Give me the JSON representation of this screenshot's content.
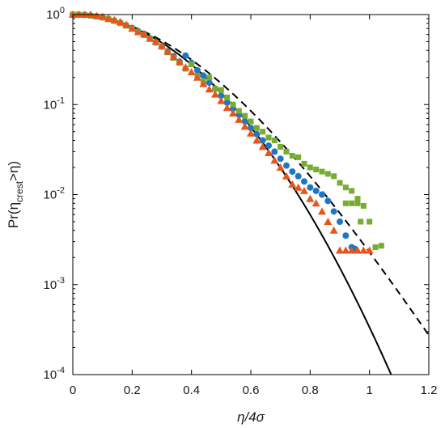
{
  "chart_data": {
    "type": "scatter",
    "xlabel": "η/4σ",
    "ylabel": {
      "prefix": "Pr(η",
      "sub": "crest",
      "suffix": ">η)"
    },
    "xlim": [
      0,
      1.2
    ],
    "ylim": [
      0.0001,
      1
    ],
    "yscale": "log",
    "grid": false,
    "legend": "none",
    "x_ticks": [
      {
        "value": 0,
        "label": "0"
      },
      {
        "value": 0.2,
        "label": "0.2"
      },
      {
        "value": 0.4,
        "label": "0.4"
      },
      {
        "value": 0.6,
        "label": "0.6"
      },
      {
        "value": 0.8,
        "label": "0.8"
      },
      {
        "value": 1,
        "label": "1"
      },
      {
        "value": 1.2,
        "label": "1.2"
      }
    ],
    "y_ticks": [
      {
        "value": 1,
        "base": "10",
        "exp": "0"
      },
      {
        "value": 0.1,
        "base": "10",
        "exp": "-1"
      },
      {
        "value": 0.01,
        "base": "10",
        "exp": "-2"
      },
      {
        "value": 0.001,
        "base": "10",
        "exp": "-3"
      },
      {
        "value": 0.0001,
        "base": "10",
        "exp": "-4"
      }
    ],
    "curves": [
      {
        "style": "solid",
        "color": "#000000",
        "formula": "exp(-8*x^2)"
      },
      {
        "style": "dashed",
        "color": "#000000",
        "formula": "exp(-8*x^2*(1-0.24*x))"
      }
    ],
    "series": [
      {
        "marker": "circle",
        "color": "#1f77c4",
        "points": [
          [
            0,
            1
          ],
          [
            0.02,
            1
          ],
          [
            0.04,
            0.99
          ],
          [
            0.06,
            0.975
          ],
          [
            0.08,
            0.955
          ],
          [
            0.1,
            0.93
          ],
          [
            0.12,
            0.895
          ],
          [
            0.14,
            0.855
          ],
          [
            0.16,
            0.81
          ],
          [
            0.18,
            0.76
          ],
          [
            0.2,
            0.71
          ],
          [
            0.22,
            0.655
          ],
          [
            0.24,
            0.6
          ],
          [
            0.26,
            0.545
          ],
          [
            0.28,
            0.49
          ],
          [
            0.3,
            0.44
          ],
          [
            0.32,
            0.39
          ],
          [
            0.34,
            0.345
          ],
          [
            0.36,
            0.3
          ],
          [
            0.38,
            0.35
          ],
          [
            0.4,
            0.29
          ],
          [
            0.42,
            0.24
          ],
          [
            0.44,
            0.21
          ],
          [
            0.46,
            0.175
          ],
          [
            0.48,
            0.15
          ],
          [
            0.5,
            0.125
          ],
          [
            0.52,
            0.105
          ],
          [
            0.54,
            0.09
          ],
          [
            0.56,
            0.077
          ],
          [
            0.58,
            0.065
          ],
          [
            0.6,
            0.055
          ],
          [
            0.62,
            0.047
          ],
          [
            0.64,
            0.04
          ],
          [
            0.66,
            0.035
          ],
          [
            0.68,
            0.03
          ],
          [
            0.7,
            0.025
          ],
          [
            0.72,
            0.021
          ],
          [
            0.74,
            0.018
          ],
          [
            0.76,
            0.016
          ],
          [
            0.78,
            0.014
          ],
          [
            0.8,
            0.012
          ],
          [
            0.82,
            0.011
          ],
          [
            0.84,
            0.01
          ],
          [
            0.86,
            0.0085
          ],
          [
            0.88,
            0.0065
          ],
          [
            0.9,
            0.005
          ],
          [
            0.92,
            0.0035
          ],
          [
            0.94,
            0.0026
          ],
          [
            0.95,
            0.0025
          ]
        ]
      },
      {
        "marker": "square",
        "color": "#77ac30",
        "points": [
          [
            0,
            1
          ],
          [
            0.02,
            1
          ],
          [
            0.04,
            0.99
          ],
          [
            0.06,
            0.97
          ],
          [
            0.08,
            0.95
          ],
          [
            0.1,
            0.925
          ],
          [
            0.12,
            0.89
          ],
          [
            0.14,
            0.85
          ],
          [
            0.16,
            0.8
          ],
          [
            0.18,
            0.75
          ],
          [
            0.2,
            0.7
          ],
          [
            0.22,
            0.64
          ],
          [
            0.24,
            0.59
          ],
          [
            0.26,
            0.54
          ],
          [
            0.28,
            0.49
          ],
          [
            0.3,
            0.44
          ],
          [
            0.32,
            0.38
          ],
          [
            0.34,
            0.33
          ],
          [
            0.36,
            0.29
          ],
          [
            0.38,
            0.25
          ],
          [
            0.4,
            0.28
          ],
          [
            0.42,
            0.21
          ],
          [
            0.44,
            0.18
          ],
          [
            0.46,
            0.2
          ],
          [
            0.48,
            0.15
          ],
          [
            0.5,
            0.145
          ],
          [
            0.52,
            0.12
          ],
          [
            0.54,
            0.1
          ],
          [
            0.56,
            0.085
          ],
          [
            0.58,
            0.075
          ],
          [
            0.6,
            0.065
          ],
          [
            0.62,
            0.055
          ],
          [
            0.64,
            0.05
          ],
          [
            0.66,
            0.043
          ],
          [
            0.68,
            0.04
          ],
          [
            0.7,
            0.034
          ],
          [
            0.72,
            0.03
          ],
          [
            0.74,
            0.027
          ],
          [
            0.76,
            0.026
          ],
          [
            0.78,
            0.022
          ],
          [
            0.8,
            0.02
          ],
          [
            0.82,
            0.019
          ],
          [
            0.84,
            0.018
          ],
          [
            0.86,
            0.017
          ],
          [
            0.88,
            0.016
          ],
          [
            0.9,
            0.0135
          ],
          [
            0.92,
            0.012
          ],
          [
            0.94,
            0.011
          ],
          [
            0.96,
            0.009
          ],
          [
            0.98,
            0.0075
          ],
          [
            1,
            0.005
          ],
          [
            1.02,
            0.0026
          ],
          [
            1.04,
            0.0027
          ],
          [
            0.92,
            0.008
          ],
          [
            0.94,
            0.008
          ],
          [
            0.96,
            0.008
          ],
          [
            0.97,
            0.005
          ]
        ]
      },
      {
        "marker": "triangle",
        "color": "#e8551c",
        "points": [
          [
            0,
            1
          ],
          [
            0.02,
            1
          ],
          [
            0.04,
            1
          ],
          [
            0.06,
            1
          ],
          [
            0.08,
            0.97
          ],
          [
            0.1,
            0.95
          ],
          [
            0.12,
            0.9
          ],
          [
            0.14,
            0.87
          ],
          [
            0.16,
            0.83
          ],
          [
            0.18,
            0.77
          ],
          [
            0.2,
            0.7
          ],
          [
            0.22,
            0.64
          ],
          [
            0.24,
            0.61
          ],
          [
            0.26,
            0.54
          ],
          [
            0.28,
            0.5
          ],
          [
            0.3,
            0.45
          ],
          [
            0.32,
            0.39
          ],
          [
            0.34,
            0.34
          ],
          [
            0.36,
            0.3
          ],
          [
            0.38,
            0.26
          ],
          [
            0.4,
            0.23
          ],
          [
            0.42,
            0.2
          ],
          [
            0.44,
            0.17
          ],
          [
            0.46,
            0.148
          ],
          [
            0.48,
            0.13
          ],
          [
            0.5,
            0.11
          ],
          [
            0.52,
            0.092
          ],
          [
            0.54,
            0.08
          ],
          [
            0.56,
            0.068
          ],
          [
            0.58,
            0.057
          ],
          [
            0.6,
            0.048
          ],
          [
            0.62,
            0.04
          ],
          [
            0.64,
            0.034
          ],
          [
            0.66,
            0.029
          ],
          [
            0.68,
            0.024
          ],
          [
            0.7,
            0.02
          ],
          [
            0.72,
            0.016
          ],
          [
            0.74,
            0.013
          ],
          [
            0.76,
            0.012
          ],
          [
            0.78,
            0.011
          ],
          [
            0.8,
            0.009
          ],
          [
            0.82,
            0.008
          ],
          [
            0.84,
            0.0065
          ],
          [
            0.86,
            0.005
          ],
          [
            0.88,
            0.004
          ],
          [
            0.9,
            0.0024
          ],
          [
            0.92,
            0.0024
          ],
          [
            0.94,
            0.0024
          ],
          [
            0.96,
            0.0024
          ],
          [
            0.98,
            0.0024
          ],
          [
            1,
            0.0024
          ]
        ]
      }
    ]
  }
}
